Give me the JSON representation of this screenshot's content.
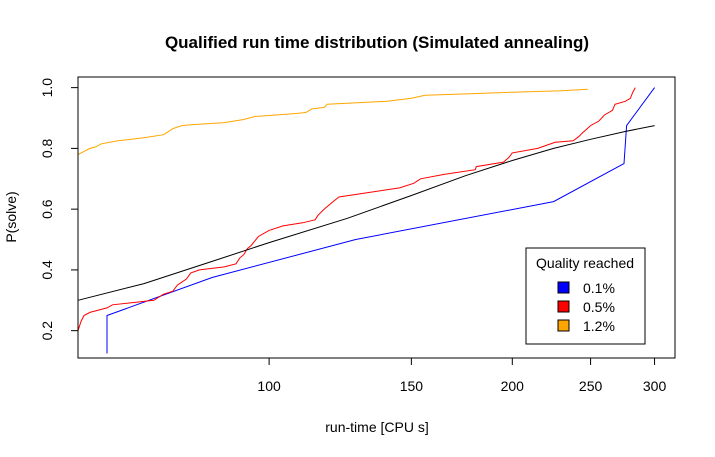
{
  "chart_data": {
    "type": "line",
    "title": "Qualified run time distribution (Simulated annealing)",
    "xlabel": "run-time [CPU s]",
    "ylabel": "P(solve)",
    "x_scale": "log",
    "xlim": [
      58,
      318
    ],
    "ylim": [
      0.11,
      1.035
    ],
    "x_ticks": [
      100,
      150,
      200,
      250,
      300
    ],
    "y_ticks": [
      0.2,
      0.4,
      0.6,
      0.8,
      1.0
    ],
    "grid": false,
    "legend": {
      "title": "Quality reached",
      "position": "bottom-right",
      "entries": [
        {
          "label": "0.1%",
          "color": "#0000ff"
        },
        {
          "label": "0.5%",
          "color": "#ff0000"
        },
        {
          "label": "1.2%",
          "color": "#ffa500"
        }
      ]
    },
    "series": [
      {
        "name": "0.1%",
        "color": "#0000ff",
        "points": [
          [
            63,
            0.125
          ],
          [
            63,
            0.25
          ],
          [
            85,
            0.375
          ],
          [
            128,
            0.5
          ],
          [
            225,
            0.625
          ],
          [
            275,
            0.75
          ],
          [
            277,
            0.875
          ],
          [
            300,
            1.0
          ]
        ]
      },
      {
        "name": "0.5%",
        "color": "#ff0000",
        "points": [
          [
            58,
            0.2
          ],
          [
            58.5,
            0.23
          ],
          [
            59,
            0.25
          ],
          [
            60,
            0.26
          ],
          [
            63,
            0.275
          ],
          [
            64,
            0.285
          ],
          [
            72,
            0.3
          ],
          [
            74,
            0.32
          ],
          [
            76,
            0.33
          ],
          [
            77,
            0.35
          ],
          [
            78,
            0.36
          ],
          [
            79,
            0.37
          ],
          [
            80,
            0.39
          ],
          [
            82,
            0.4
          ],
          [
            88,
            0.41
          ],
          [
            91,
            0.42
          ],
          [
            92,
            0.44
          ],
          [
            93,
            0.45
          ],
          [
            94,
            0.47
          ],
          [
            95,
            0.48
          ],
          [
            97,
            0.51
          ],
          [
            100,
            0.53
          ],
          [
            104,
            0.545
          ],
          [
            110,
            0.555
          ],
          [
            114,
            0.565
          ],
          [
            115,
            0.58
          ],
          [
            117,
            0.6
          ],
          [
            120,
            0.625
          ],
          [
            122,
            0.64
          ],
          [
            145,
            0.67
          ],
          [
            151,
            0.685
          ],
          [
            154,
            0.7
          ],
          [
            165,
            0.715
          ],
          [
            180,
            0.73
          ],
          [
            180.5,
            0.74
          ],
          [
            195,
            0.755
          ],
          [
            198,
            0.77
          ],
          [
            200,
            0.785
          ],
          [
            215,
            0.8
          ],
          [
            226,
            0.82
          ],
          [
            238,
            0.825
          ],
          [
            242,
            0.84
          ],
          [
            244,
            0.85
          ],
          [
            250,
            0.875
          ],
          [
            256,
            0.89
          ],
          [
            260,
            0.91
          ],
          [
            266,
            0.925
          ],
          [
            268,
            0.945
          ],
          [
            276,
            0.955
          ],
          [
            280,
            0.965
          ],
          [
            282,
            0.985
          ],
          [
            284,
            1.0
          ]
        ]
      },
      {
        "name": "1.2%",
        "color": "#ffa500",
        "points": [
          [
            58,
            0.78
          ],
          [
            59,
            0.79
          ],
          [
            60,
            0.8
          ],
          [
            61,
            0.805
          ],
          [
            62,
            0.815
          ],
          [
            65,
            0.825
          ],
          [
            70,
            0.835
          ],
          [
            74,
            0.845
          ],
          [
            75,
            0.855
          ],
          [
            76,
            0.865
          ],
          [
            78,
            0.875
          ],
          [
            80,
            0.878
          ],
          [
            88,
            0.885
          ],
          [
            93,
            0.895
          ],
          [
            96,
            0.905
          ],
          [
            102,
            0.91
          ],
          [
            108,
            0.915
          ],
          [
            111,
            0.918
          ],
          [
            113,
            0.93
          ],
          [
            117,
            0.935
          ],
          [
            118,
            0.945
          ],
          [
            140,
            0.955
          ],
          [
            150,
            0.965
          ],
          [
            156,
            0.975
          ],
          [
            170,
            0.978
          ],
          [
            200,
            0.985
          ],
          [
            230,
            0.99
          ],
          [
            248,
            0.995
          ]
        ]
      },
      {
        "name": "",
        "color": "#000000",
        "points": [
          [
            58,
            0.3
          ],
          [
            70,
            0.355
          ],
          [
            85,
            0.428
          ],
          [
            100,
            0.49
          ],
          [
            125,
            0.57
          ],
          [
            150,
            0.645
          ],
          [
            175,
            0.71
          ],
          [
            200,
            0.76
          ],
          [
            225,
            0.8
          ],
          [
            250,
            0.83
          ],
          [
            275,
            0.855
          ],
          [
            300,
            0.875
          ]
        ]
      }
    ]
  }
}
